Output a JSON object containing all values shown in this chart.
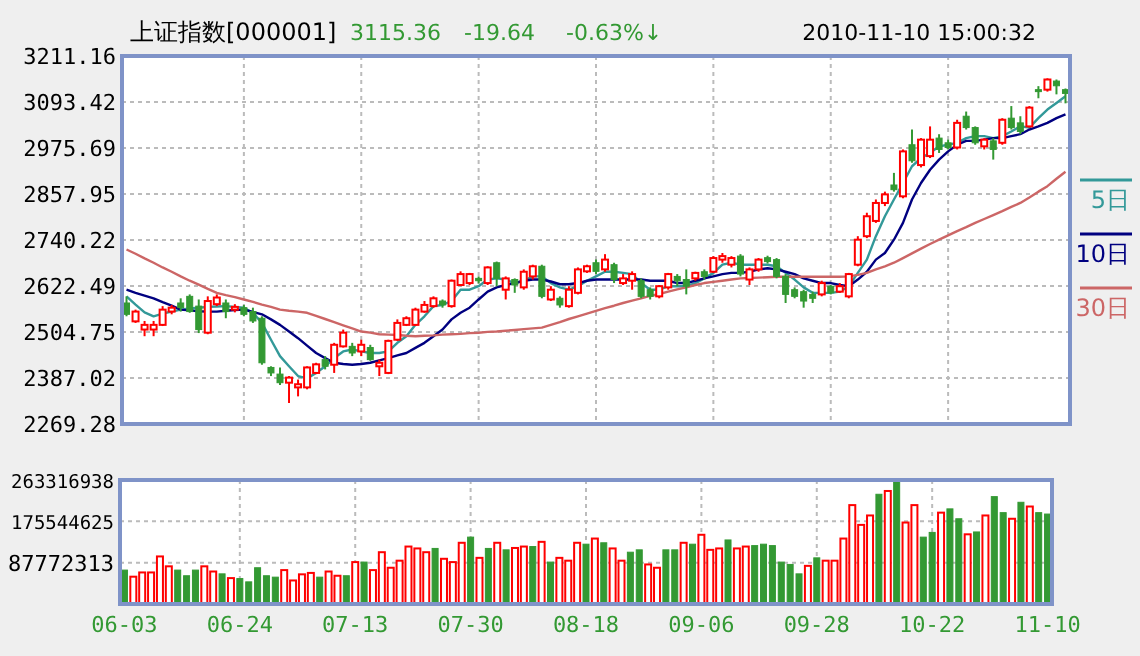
{
  "chart_data": [
    {
      "type": "candlestick",
      "title": "上证指数[000001]",
      "annotations": [
        "3115.36",
        "-19.64",
        "-0.63%↓",
        "2010-11-10 15:00:32"
      ],
      "categories": [
        null,
        null,
        null,
        null,
        null,
        null,
        null,
        null,
        null,
        null,
        null,
        null,
        null,
        null,
        null,
        null,
        null,
        null,
        null,
        null,
        null,
        null,
        null,
        null,
        null,
        null,
        null,
        null,
        null,
        null,
        null,
        null,
        null,
        null,
        null,
        null,
        null,
        null,
        null,
        null,
        null,
        null,
        null,
        null,
        null,
        null,
        null,
        null,
        null,
        null,
        null,
        null,
        null,
        null,
        null,
        null,
        null,
        null,
        null,
        null,
        null,
        null,
        null,
        null,
        null,
        null,
        null,
        null,
        null,
        null,
        null,
        null,
        null,
        null,
        null,
        null,
        null,
        null,
        null,
        null,
        null,
        null,
        null,
        null,
        null,
        null,
        null,
        null,
        null,
        null,
        null,
        null,
        null,
        null,
        null,
        null,
        null,
        null,
        null,
        null,
        null,
        null,
        null,
        null,
        null
      ],
      "ohlc": [
        [
          2579,
          2596,
          2545,
          2550
        ],
        [
          2532,
          2562,
          2528,
          2557
        ],
        [
          2511,
          2533,
          2494,
          2523
        ],
        [
          2511,
          2533,
          2494,
          2523
        ],
        [
          2523,
          2571,
          2520,
          2562
        ],
        [
          2557,
          2574,
          2550,
          2567
        ],
        [
          2579,
          2591,
          2557,
          2567
        ],
        [
          2596,
          2601,
          2554,
          2557
        ],
        [
          2571,
          2588,
          2502,
          2511
        ],
        [
          2503,
          2596,
          2499,
          2584
        ],
        [
          2576,
          2601,
          2571,
          2593
        ],
        [
          2579,
          2588,
          2540,
          2557
        ],
        [
          2562,
          2576,
          2555,
          2569
        ],
        [
          2567,
          2574,
          2545,
          2550
        ],
        [
          2557,
          2567,
          2528,
          2533
        ],
        [
          2540,
          2545,
          2421,
          2426
        ],
        [
          2414,
          2417,
          2392,
          2400
        ],
        [
          2397,
          2414,
          2369,
          2375
        ],
        [
          2375,
          2392,
          2323,
          2388
        ],
        [
          2363,
          2383,
          2340,
          2371
        ],
        [
          2363,
          2417,
          2358,
          2414
        ],
        [
          2400,
          2426,
          2397,
          2422
        ],
        [
          2434,
          2443,
          2409,
          2417
        ],
        [
          2421,
          2477,
          2400,
          2472
        ],
        [
          2468,
          2511,
          2465,
          2503
        ],
        [
          2468,
          2477,
          2443,
          2451
        ],
        [
          2455,
          2485,
          2443,
          2472
        ],
        [
          2465,
          2472,
          2431,
          2434
        ],
        [
          2417,
          2434,
          2392,
          2426
        ],
        [
          2400,
          2485,
          2397,
          2482
        ],
        [
          2485,
          2537,
          2482,
          2528
        ],
        [
          2523,
          2545,
          2520,
          2540
        ],
        [
          2523,
          2567,
          2520,
          2562
        ],
        [
          2557,
          2584,
          2554,
          2574
        ],
        [
          2571,
          2596,
          2567,
          2591
        ],
        [
          2584,
          2588,
          2567,
          2574
        ],
        [
          2571,
          2639,
          2567,
          2636
        ],
        [
          2625,
          2660,
          2622,
          2653
        ],
        [
          2630,
          2656,
          2625,
          2653
        ],
        [
          2642,
          2647,
          2629,
          2636
        ],
        [
          2630,
          2673,
          2625,
          2670
        ],
        [
          2682,
          2685,
          2622,
          2642
        ],
        [
          2613,
          2647,
          2588,
          2642
        ],
        [
          2639,
          2642,
          2605,
          2625
        ],
        [
          2619,
          2665,
          2613,
          2659
        ],
        [
          2647,
          2677,
          2639,
          2673
        ],
        [
          2673,
          2677,
          2591,
          2596
        ],
        [
          2588,
          2622,
          2584,
          2613
        ],
        [
          2591,
          2596,
          2567,
          2574
        ],
        [
          2571,
          2622,
          2567,
          2613
        ],
        [
          2605,
          2670,
          2601,
          2665
        ],
        [
          2660,
          2677,
          2656,
          2673
        ],
        [
          2682,
          2690,
          2653,
          2660
        ],
        [
          2665,
          2704,
          2659,
          2690
        ],
        [
          2677,
          2682,
          2630,
          2639
        ],
        [
          2630,
          2653,
          2625,
          2642
        ],
        [
          2636,
          2660,
          2613,
          2653
        ],
        [
          2636,
          2642,
          2591,
          2596
        ],
        [
          2613,
          2619,
          2588,
          2596
        ],
        [
          2596,
          2625,
          2591,
          2622
        ],
        [
          2619,
          2656,
          2613,
          2653
        ],
        [
          2647,
          2653,
          2622,
          2636
        ],
        [
          2639,
          2665,
          2601,
          2622
        ],
        [
          2642,
          2659,
          2636,
          2656
        ],
        [
          2659,
          2665,
          2639,
          2647
        ],
        [
          2659,
          2699,
          2656,
          2694
        ],
        [
          2690,
          2707,
          2682,
          2699
        ],
        [
          2677,
          2699,
          2670,
          2694
        ],
        [
          2699,
          2704,
          2647,
          2653
        ],
        [
          2639,
          2670,
          2625,
          2665
        ],
        [
          2665,
          2694,
          2659,
          2690
        ],
        [
          2695,
          2700,
          2680,
          2685
        ],
        [
          2690,
          2694,
          2642,
          2647
        ],
        [
          2647,
          2653,
          2579,
          2601
        ],
        [
          2613,
          2619,
          2591,
          2596
        ],
        [
          2608,
          2613,
          2567,
          2584
        ],
        [
          2601,
          2608,
          2579,
          2591
        ],
        [
          2601,
          2636,
          2596,
          2630
        ],
        [
          2622,
          2625,
          2601,
          2605
        ],
        [
          2608,
          2630,
          2605,
          2622
        ],
        [
          2596,
          2656,
          2591,
          2653
        ],
        [
          2677,
          2750,
          2673,
          2741
        ],
        [
          2750,
          2810,
          2745,
          2801
        ],
        [
          2789,
          2844,
          2784,
          2835
        ],
        [
          2835,
          2864,
          2827,
          2857
        ],
        [
          2881,
          2912,
          2864,
          2869
        ],
        [
          2852,
          2972,
          2847,
          2967
        ],
        [
          2984,
          3023,
          2938,
          2943
        ],
        [
          2932,
          3001,
          2926,
          2997
        ],
        [
          2955,
          3031,
          2950,
          2997
        ],
        [
          3001,
          3011,
          2963,
          2972
        ],
        [
          2989,
          2997,
          2972,
          2977
        ],
        [
          2977,
          3048,
          2972,
          3040
        ],
        [
          3057,
          3069,
          3023,
          3028
        ],
        [
          3028,
          3031,
          2984,
          2989
        ],
        [
          2980,
          3001,
          2972,
          2997
        ],
        [
          2994,
          3001,
          2946,
          2972
        ],
        [
          2989,
          3052,
          2984,
          3048
        ],
        [
          3052,
          3083,
          3023,
          3028
        ],
        [
          3040,
          3057,
          3011,
          3018
        ],
        [
          3031,
          3083,
          3028,
          3079
        ],
        [
          3125,
          3134,
          3103,
          3120
        ],
        [
          3125,
          3154,
          3120,
          3151
        ],
        [
          3147,
          3151,
          3113,
          3135
        ],
        [
          3125,
          3128,
          3090,
          3115.36
        ]
      ],
      "colors": [
        "#339933",
        "#ff0000",
        "#ff0000",
        "#ff0000",
        "#ff0000",
        "#ff0000",
        "#339933",
        "#339933",
        "#339933",
        "#ff0000",
        "#ff0000",
        "#339933",
        "#ff0000",
        "#339933",
        "#339933",
        "#339933",
        "#339933",
        "#339933",
        "#ff0000",
        "#ff0000",
        "#ff0000",
        "#ff0000",
        "#339933",
        "#ff0000",
        "#ff0000",
        "#339933",
        "#ff0000",
        "#339933",
        "#ff0000",
        "#ff0000",
        "#ff0000",
        "#ff0000",
        "#ff0000",
        "#ff0000",
        "#ff0000",
        "#339933",
        "#ff0000",
        "#ff0000",
        "#ff0000",
        "#339933",
        "#ff0000",
        "#339933",
        "#ff0000",
        "#339933",
        "#ff0000",
        "#ff0000",
        "#339933",
        "#ff0000",
        "#339933",
        "#ff0000",
        "#ff0000",
        "#ff0000",
        "#339933",
        "#ff0000",
        "#339933",
        "#ff0000",
        "#ff0000",
        "#339933",
        "#339933",
        "#ff0000",
        "#ff0000",
        "#339933",
        "#339933",
        "#ff0000",
        "#339933",
        "#ff0000",
        "#ff0000",
        "#ff0000",
        "#339933",
        "#ff0000",
        "#ff0000",
        "#339933",
        "#339933",
        "#339933",
        "#339933",
        "#339933",
        "#339933",
        "#ff0000",
        "#339933",
        "#ff0000",
        "#ff0000",
        "#ff0000",
        "#ff0000",
        "#ff0000",
        "#ff0000",
        "#339933",
        "#ff0000",
        "#339933",
        "#ff0000",
        "#ff0000",
        "#339933",
        "#339933",
        "#ff0000",
        "#339933",
        "#339933",
        "#ff0000",
        "#339933",
        "#ff0000",
        "#339933",
        "#339933",
        "#ff0000",
        "#339933",
        "#ff0000",
        "#339933",
        "#339933"
      ],
      "series": [
        {
          "name": "5日",
          "type": "line",
          "color": "#339999",
          "values": [
            2596,
            2575,
            2555,
            2545,
            2552,
            2557,
            2562,
            2565,
            2567,
            2569,
            2570,
            2571,
            2569,
            2567,
            2554,
            2528,
            2485,
            2443,
            2417,
            2392,
            2386,
            2400,
            2417,
            2438,
            2455,
            2460,
            2455,
            2451,
            2451,
            2455,
            2477,
            2494,
            2523,
            2545,
            2571,
            2574,
            2584,
            2613,
            2613,
            2622,
            2639,
            2642,
            2639,
            2630,
            2636,
            2647,
            2647,
            2630,
            2619,
            2613,
            2622,
            2636,
            2647,
            2659,
            2659,
            2656,
            2653,
            2630,
            2613,
            2613,
            2622,
            2622,
            2622,
            2630,
            2642,
            2656,
            2677,
            2682,
            2677,
            2677,
            2677,
            2677,
            2673,
            2656,
            2639,
            2619,
            2605,
            2605,
            2605,
            2608,
            2622,
            2656,
            2690,
            2750,
            2801,
            2844,
            2886,
            2929,
            2950,
            2963,
            2980,
            2984,
            2989,
            3001,
            3006,
            3006,
            3001,
            3006,
            3018,
            3031,
            3028,
            3052,
            3074,
            3091,
            3108
          ]
        },
        {
          "name": "10日",
          "type": "line",
          "color": "#000080",
          "values": [
            2613,
            2605,
            2598,
            2591,
            2581,
            2572,
            2562,
            2560,
            2558,
            2557,
            2557,
            2559,
            2561,
            2562,
            2556,
            2550,
            2537,
            2523,
            2506,
            2489,
            2470,
            2451,
            2438,
            2426,
            2423,
            2421,
            2423,
            2426,
            2432,
            2438,
            2445,
            2451,
            2464,
            2477,
            2494,
            2511,
            2537,
            2554,
            2567,
            2588,
            2608,
            2619,
            2625,
            2630,
            2636,
            2639,
            2639,
            2634,
            2627,
            2627,
            2630,
            2636,
            2639,
            2639,
            2639,
            2639,
            2639,
            2639,
            2636,
            2636,
            2636,
            2630,
            2630,
            2636,
            2642,
            2647,
            2653,
            2656,
            2656,
            2659,
            2665,
            2668,
            2665,
            2659,
            2653,
            2642,
            2636,
            2630,
            2630,
            2625,
            2622,
            2639,
            2659,
            2690,
            2707,
            2741,
            2784,
            2844,
            2886,
            2920,
            2946,
            2967,
            2984,
            2994,
            2994,
            2997,
            3001,
            3001,
            3006,
            3011,
            3023,
            3031,
            3040,
            3052,
            3062
          ]
        },
        {
          "name": "30日",
          "type": "line",
          "color": "#cc6666",
          "values": [
            2716,
            2705,
            2693,
            2682,
            2670,
            2659,
            2647,
            2636,
            2626,
            2615,
            2605,
            2599,
            2594,
            2588,
            2582,
            2575,
            2569,
            2562,
            2559,
            2557,
            2554,
            2546,
            2538,
            2530,
            2522,
            2514,
            2506,
            2503,
            2499,
            2498,
            2497,
            2495,
            2494,
            2495,
            2496,
            2498,
            2499,
            2500,
            2502,
            2503,
            2505,
            2506,
            2508,
            2510,
            2512,
            2514,
            2516,
            2523,
            2530,
            2538,
            2545,
            2552,
            2559,
            2566,
            2572,
            2579,
            2585,
            2591,
            2597,
            2602,
            2608,
            2614,
            2619,
            2625,
            2630,
            2633,
            2636,
            2639,
            2642,
            2643,
            2644,
            2645,
            2646,
            2646,
            2646,
            2646,
            2646,
            2646,
            2646,
            2646,
            2647,
            2651,
            2656,
            2665,
            2673,
            2682,
            2694,
            2706,
            2718,
            2730,
            2741,
            2752,
            2763,
            2773,
            2784,
            2794,
            2804,
            2814,
            2825,
            2835,
            2849,
            2864,
            2878,
            2897,
            2915
          ]
        }
      ],
      "ylim": [
        2269.28,
        3211.16
      ],
      "yticks": [
        2269.28,
        2387.02,
        2504.75,
        2622.49,
        2740.22,
        2857.95,
        2975.69,
        3093.42,
        3211.16
      ],
      "grid": true,
      "legend": "right",
      "tick_labels": "y"
    },
    {
      "type": "bar",
      "categories": [
        "06-03",
        null,
        null,
        null,
        null,
        null,
        null,
        null,
        null,
        null,
        null,
        null,
        null,
        "06-24",
        null,
        null,
        null,
        null,
        null,
        null,
        null,
        null,
        null,
        null,
        null,
        null,
        "07-13",
        null,
        null,
        null,
        null,
        null,
        null,
        null,
        null,
        null,
        null,
        null,
        null,
        "07-30",
        null,
        null,
        null,
        null,
        null,
        null,
        null,
        null,
        null,
        null,
        null,
        null,
        "08-18",
        null,
        null,
        null,
        null,
        null,
        null,
        null,
        null,
        null,
        null,
        null,
        null,
        "09-06",
        null,
        null,
        null,
        null,
        null,
        null,
        null,
        null,
        null,
        null,
        null,
        null,
        "09-28",
        null,
        null,
        null,
        null,
        null,
        null,
        null,
        null,
        null,
        null,
        null,
        null,
        "10-22",
        null,
        null,
        null,
        null,
        null,
        null,
        null,
        null,
        null,
        null,
        null,
        null,
        "11-10"
      ],
      "values": [
        72000000,
        58000000,
        67000000,
        67000000,
        101000000,
        80000000,
        72000000,
        60000000,
        72000000,
        80000000,
        69000000,
        64000000,
        55000000,
        54000000,
        47000000,
        77000000,
        60000000,
        57000000,
        72000000,
        50000000,
        63000000,
        66000000,
        57000000,
        69000000,
        60000000,
        60000000,
        89000000,
        89000000,
        72000000,
        110000000,
        77000000,
        92000000,
        122000000,
        118000000,
        110000000,
        118000000,
        96000000,
        89000000,
        130000000,
        142000000,
        98000000,
        118000000,
        130000000,
        115000000,
        119000000,
        122000000,
        122000000,
        132000000,
        89000000,
        98000000,
        92000000,
        130000000,
        127000000,
        139000000,
        130000000,
        118000000,
        92000000,
        110000000,
        115000000,
        84000000,
        77000000,
        115000000,
        115000000,
        130000000,
        127000000,
        147000000,
        115000000,
        118000000,
        136000000,
        118000000,
        122000000,
        124000000,
        127000000,
        124000000,
        89000000,
        84000000,
        64000000,
        81000000,
        98000000,
        92000000,
        92000000,
        139000000,
        210000000,
        168000000,
        188000000,
        233000000,
        240000000,
        263000000,
        173000000,
        210000000,
        142000000,
        152000000,
        194000000,
        202000000,
        181000000,
        148000000,
        153000000,
        188000000,
        228000000,
        194000000,
        181000000,
        216000000,
        207000000,
        194000000,
        191000000
      ],
      "colors": [
        "#339933",
        "#ff0000",
        "#ff0000",
        "#ff0000",
        "#ff0000",
        "#ff0000",
        "#339933",
        "#339933",
        "#339933",
        "#ff0000",
        "#ff0000",
        "#339933",
        "#ff0000",
        "#339933",
        "#339933",
        "#339933",
        "#339933",
        "#339933",
        "#ff0000",
        "#ff0000",
        "#ff0000",
        "#ff0000",
        "#339933",
        "#ff0000",
        "#ff0000",
        "#339933",
        "#ff0000",
        "#339933",
        "#ff0000",
        "#ff0000",
        "#ff0000",
        "#ff0000",
        "#ff0000",
        "#ff0000",
        "#ff0000",
        "#339933",
        "#ff0000",
        "#ff0000",
        "#ff0000",
        "#339933",
        "#ff0000",
        "#339933",
        "#ff0000",
        "#339933",
        "#ff0000",
        "#ff0000",
        "#339933",
        "#ff0000",
        "#339933",
        "#ff0000",
        "#ff0000",
        "#ff0000",
        "#339933",
        "#ff0000",
        "#339933",
        "#ff0000",
        "#ff0000",
        "#339933",
        "#339933",
        "#ff0000",
        "#ff0000",
        "#339933",
        "#339933",
        "#ff0000",
        "#339933",
        "#ff0000",
        "#ff0000",
        "#ff0000",
        "#339933",
        "#ff0000",
        "#ff0000",
        "#339933",
        "#339933",
        "#339933",
        "#339933",
        "#339933",
        "#339933",
        "#ff0000",
        "#339933",
        "#ff0000",
        "#ff0000",
        "#ff0000",
        "#ff0000",
        "#ff0000",
        "#ff0000",
        "#339933",
        "#ff0000",
        "#339933",
        "#ff0000",
        "#ff0000",
        "#339933",
        "#339933",
        "#ff0000",
        "#339933",
        "#339933",
        "#ff0000",
        "#339933",
        "#ff0000",
        "#339933",
        "#339933",
        "#ff0000",
        "#339933",
        "#ff0000",
        "#339933",
        "#339933"
      ],
      "ylim": [
        0,
        263316938
      ],
      "yticks": [
        87772313,
        175544625,
        263316938
      ],
      "grid": true
    }
  ]
}
